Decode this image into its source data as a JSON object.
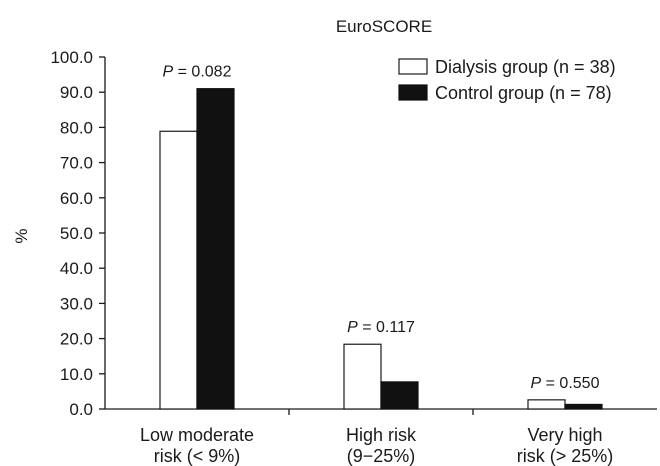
{
  "chart_data": {
    "type": "bar",
    "title": "EuroSCORE",
    "ylabel": "%",
    "xlabel": "",
    "ylim": [
      0,
      100
    ],
    "y_ticks": [
      "0.0",
      "10.0",
      "20.0",
      "30.0",
      "40.0",
      "50.0",
      "60.0",
      "70.0",
      "80.0",
      "90.0",
      "100.0"
    ],
    "categories": [
      [
        "Low moderate",
        "risk (< 9%)"
      ],
      [
        "High risk",
        "(9−25%)"
      ],
      [
        "Very high",
        "risk (> 25%)"
      ]
    ],
    "series": [
      {
        "name": "Dialysis group (n = 38)",
        "values": [
          78.9,
          18.4,
          2.6
        ],
        "fill": "#ffffff",
        "stroke": "#1a1a1a"
      },
      {
        "name": "Control group (n = 78)",
        "values": [
          91.0,
          7.7,
          1.3
        ],
        "fill": "#111111",
        "stroke": "#111111"
      }
    ],
    "annotations": [
      {
        "italic": "P",
        "text": " = 0.082"
      },
      {
        "italic": "P",
        "text": " = 0.117"
      },
      {
        "italic": "P",
        "text": " = 0.550"
      }
    ],
    "legend_position": "top-right",
    "grid": false
  }
}
